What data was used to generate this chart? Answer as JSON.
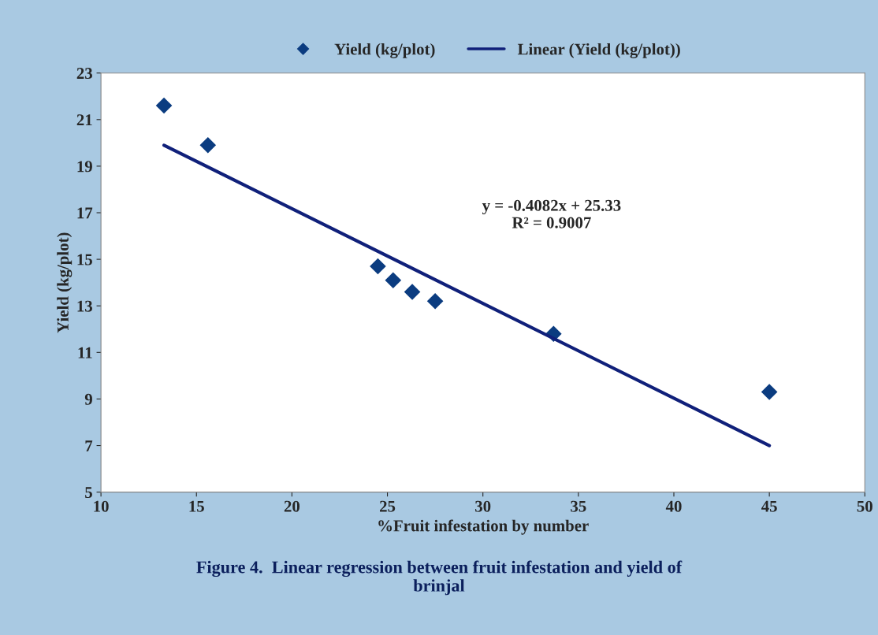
{
  "chart_data": {
    "type": "scatter",
    "xlabel": "%Fruit infestation by number",
    "ylabel": "Yield (kg/plot)",
    "series": [
      {
        "name": "Yield (kg/plot)",
        "color": "#0b3c80",
        "marker": "diamond",
        "x": [
          13.3,
          15.6,
          24.5,
          25.3,
          26.3,
          27.5,
          33.7,
          45
        ],
        "values": [
          21.6,
          19.9,
          14.7,
          14.1,
          13.6,
          13.2,
          11.8,
          9.3
        ]
      },
      {
        "name": "Linear (Yield (kg/plot))",
        "type": "line",
        "color": "#10207a",
        "line_style": "solid",
        "x": [
          13.3,
          45
        ],
        "values": [
          19.9,
          7.0
        ]
      }
    ],
    "xlim": [
      10,
      50
    ],
    "xticks": [
      10,
      15,
      20,
      25,
      30,
      35,
      40,
      45,
      50
    ],
    "ylim": [
      5,
      23
    ],
    "yticks": [
      5,
      7,
      9,
      11,
      13,
      15,
      17,
      19,
      21,
      23
    ],
    "grid": false,
    "legend": "top",
    "annotations": [
      "y = -0.4082x + 25.33\nR² = 0.9007",
      "Figure 4.  Linear regression between fruit infestation and yield of\nbrinjal"
    ]
  }
}
